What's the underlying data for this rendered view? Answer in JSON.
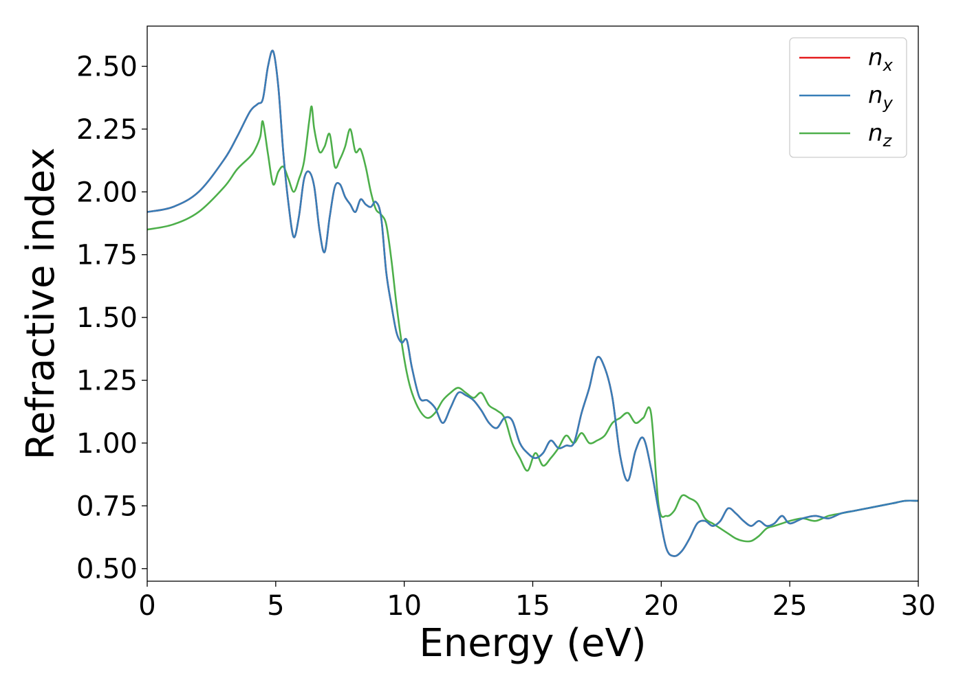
{
  "chart_data": {
    "type": "line",
    "xlabel": "Energy (eV)",
    "ylabel": "Refractive index",
    "xlim": [
      0,
      30
    ],
    "ylim": [
      0.45,
      2.66
    ],
    "xticks": [
      "0",
      "5",
      "10",
      "15",
      "20",
      "25",
      "30"
    ],
    "yticks": [
      "0.50",
      "0.75",
      "1.00",
      "1.25",
      "1.50",
      "1.75",
      "2.00",
      "2.25",
      "2.50"
    ],
    "grid": false,
    "legend_position": "top-right",
    "series": [
      {
        "name": "n",
        "subscript": "x",
        "color": "#e41a1c",
        "x": [
          0,
          1,
          2,
          3,
          3.5,
          4,
          4.3,
          4.5,
          4.7,
          4.9,
          5.1,
          5.3,
          5.5,
          5.7,
          5.9,
          6.1,
          6.3,
          6.5,
          6.7,
          6.9,
          7.1,
          7.3,
          7.5,
          7.7,
          7.9,
          8.1,
          8.3,
          8.5,
          8.7,
          8.9,
          9.1,
          9.3,
          9.5,
          9.7,
          9.9,
          10.1,
          10.3,
          10.6,
          10.9,
          11.2,
          11.5,
          11.8,
          12.1,
          12.4,
          12.7,
          13,
          13.3,
          13.6,
          13.9,
          14.2,
          14.5,
          14.8,
          15.1,
          15.4,
          15.7,
          16,
          16.3,
          16.6,
          16.9,
          17.2,
          17.5,
          17.8,
          18.1,
          18.4,
          18.7,
          19,
          19.3,
          19.6,
          19.9,
          20.2,
          20.5,
          20.8,
          21.1,
          21.4,
          21.7,
          22,
          22.3,
          22.6,
          22.9,
          23.2,
          23.5,
          23.8,
          24.1,
          24.4,
          24.7,
          25,
          25.5,
          26,
          26.5,
          27,
          27.5,
          28,
          28.5,
          29,
          29.5,
          30
        ],
        "values": [
          1.92,
          1.94,
          2.0,
          2.13,
          2.22,
          2.32,
          2.35,
          2.37,
          2.5,
          2.56,
          2.42,
          2.15,
          1.95,
          1.82,
          1.9,
          2.05,
          2.08,
          2.02,
          1.85,
          1.76,
          1.9,
          2.02,
          2.03,
          1.98,
          1.95,
          1.92,
          1.97,
          1.95,
          1.94,
          1.96,
          1.9,
          1.68,
          1.55,
          1.44,
          1.4,
          1.41,
          1.3,
          1.18,
          1.17,
          1.14,
          1.08,
          1.14,
          1.2,
          1.19,
          1.17,
          1.13,
          1.08,
          1.06,
          1.1,
          1.09,
          1.0,
          0.96,
          0.94,
          0.96,
          1.01,
          0.98,
          0.99,
          1.0,
          1.12,
          1.22,
          1.34,
          1.3,
          1.18,
          0.95,
          0.85,
          0.97,
          1.02,
          0.9,
          0.73,
          0.58,
          0.55,
          0.57,
          0.62,
          0.68,
          0.69,
          0.67,
          0.69,
          0.74,
          0.72,
          0.69,
          0.67,
          0.69,
          0.67,
          0.68,
          0.71,
          0.68,
          0.7,
          0.71,
          0.7,
          0.72,
          0.73,
          0.74,
          0.75,
          0.76,
          0.77,
          0.77
        ]
      },
      {
        "name": "n",
        "subscript": "y",
        "color": "#377eb8",
        "x": [
          0,
          1,
          2,
          3,
          3.5,
          4,
          4.3,
          4.5,
          4.7,
          4.9,
          5.1,
          5.3,
          5.5,
          5.7,
          5.9,
          6.1,
          6.3,
          6.5,
          6.7,
          6.9,
          7.1,
          7.3,
          7.5,
          7.7,
          7.9,
          8.1,
          8.3,
          8.5,
          8.7,
          8.9,
          9.1,
          9.3,
          9.5,
          9.7,
          9.9,
          10.1,
          10.3,
          10.6,
          10.9,
          11.2,
          11.5,
          11.8,
          12.1,
          12.4,
          12.7,
          13,
          13.3,
          13.6,
          13.9,
          14.2,
          14.5,
          14.8,
          15.1,
          15.4,
          15.7,
          16,
          16.3,
          16.6,
          16.9,
          17.2,
          17.5,
          17.8,
          18.1,
          18.4,
          18.7,
          19,
          19.3,
          19.6,
          19.9,
          20.2,
          20.5,
          20.8,
          21.1,
          21.4,
          21.7,
          22,
          22.3,
          22.6,
          22.9,
          23.2,
          23.5,
          23.8,
          24.1,
          24.4,
          24.7,
          25,
          25.5,
          26,
          26.5,
          27,
          27.5,
          28,
          28.5,
          29,
          29.5,
          30
        ],
        "values": [
          1.92,
          1.94,
          2.0,
          2.13,
          2.22,
          2.32,
          2.35,
          2.37,
          2.5,
          2.56,
          2.42,
          2.15,
          1.95,
          1.82,
          1.9,
          2.05,
          2.08,
          2.02,
          1.85,
          1.76,
          1.9,
          2.02,
          2.03,
          1.98,
          1.95,
          1.92,
          1.97,
          1.95,
          1.94,
          1.96,
          1.9,
          1.68,
          1.55,
          1.44,
          1.4,
          1.41,
          1.3,
          1.18,
          1.17,
          1.14,
          1.08,
          1.14,
          1.2,
          1.19,
          1.17,
          1.13,
          1.08,
          1.06,
          1.1,
          1.09,
          1.0,
          0.96,
          0.94,
          0.96,
          1.01,
          0.98,
          0.99,
          1.0,
          1.12,
          1.22,
          1.34,
          1.3,
          1.18,
          0.95,
          0.85,
          0.97,
          1.02,
          0.9,
          0.73,
          0.58,
          0.55,
          0.57,
          0.62,
          0.68,
          0.69,
          0.67,
          0.69,
          0.74,
          0.72,
          0.69,
          0.67,
          0.69,
          0.67,
          0.68,
          0.71,
          0.68,
          0.7,
          0.71,
          0.7,
          0.72,
          0.73,
          0.74,
          0.75,
          0.76,
          0.77,
          0.77
        ]
      },
      {
        "name": "n",
        "subscript": "z",
        "color": "#4daf4a",
        "x": [
          0,
          1,
          2,
          3,
          3.5,
          4,
          4.2,
          4.4,
          4.5,
          4.7,
          4.9,
          5.1,
          5.3,
          5.5,
          5.7,
          5.9,
          6.1,
          6.3,
          6.4,
          6.5,
          6.7,
          6.9,
          7.1,
          7.3,
          7.5,
          7.7,
          7.9,
          8.1,
          8.3,
          8.5,
          8.7,
          8.9,
          9.1,
          9.3,
          9.5,
          9.7,
          9.9,
          10.1,
          10.3,
          10.6,
          10.9,
          11.2,
          11.5,
          11.8,
          12.1,
          12.4,
          12.7,
          13,
          13.3,
          13.6,
          13.9,
          14.2,
          14.5,
          14.8,
          15.1,
          15.4,
          15.7,
          16,
          16.3,
          16.6,
          16.9,
          17.2,
          17.5,
          17.8,
          18.1,
          18.4,
          18.7,
          19,
          19.3,
          19.6,
          19.9,
          20.2,
          20.5,
          20.8,
          21.1,
          21.4,
          21.7,
          22,
          22.3,
          22.6,
          22.9,
          23.2,
          23.5,
          23.8,
          24.1,
          24.4,
          24.7,
          25,
          25.5,
          26,
          26.5,
          27,
          27.5,
          28,
          28.5,
          29,
          29.5,
          30
        ],
        "values": [
          1.85,
          1.87,
          1.92,
          2.02,
          2.09,
          2.14,
          2.17,
          2.22,
          2.28,
          2.15,
          2.03,
          2.08,
          2.1,
          2.05,
          2.0,
          2.05,
          2.12,
          2.28,
          2.34,
          2.25,
          2.16,
          2.18,
          2.23,
          2.1,
          2.13,
          2.18,
          2.25,
          2.16,
          2.17,
          2.1,
          2.0,
          1.93,
          1.91,
          1.87,
          1.73,
          1.55,
          1.4,
          1.28,
          1.2,
          1.13,
          1.1,
          1.12,
          1.17,
          1.2,
          1.22,
          1.2,
          1.18,
          1.2,
          1.15,
          1.13,
          1.1,
          1.0,
          0.94,
          0.89,
          0.96,
          0.91,
          0.94,
          0.98,
          1.03,
          1.0,
          1.04,
          1.0,
          1.01,
          1.03,
          1.08,
          1.1,
          1.12,
          1.08,
          1.1,
          1.12,
          0.75,
          0.71,
          0.73,
          0.79,
          0.78,
          0.76,
          0.7,
          0.68,
          0.66,
          0.64,
          0.62,
          0.61,
          0.61,
          0.63,
          0.66,
          0.67,
          0.68,
          0.69,
          0.7,
          0.69,
          0.71,
          0.72,
          0.73,
          0.74,
          0.75,
          0.76,
          0.77,
          0.77
        ]
      }
    ]
  }
}
